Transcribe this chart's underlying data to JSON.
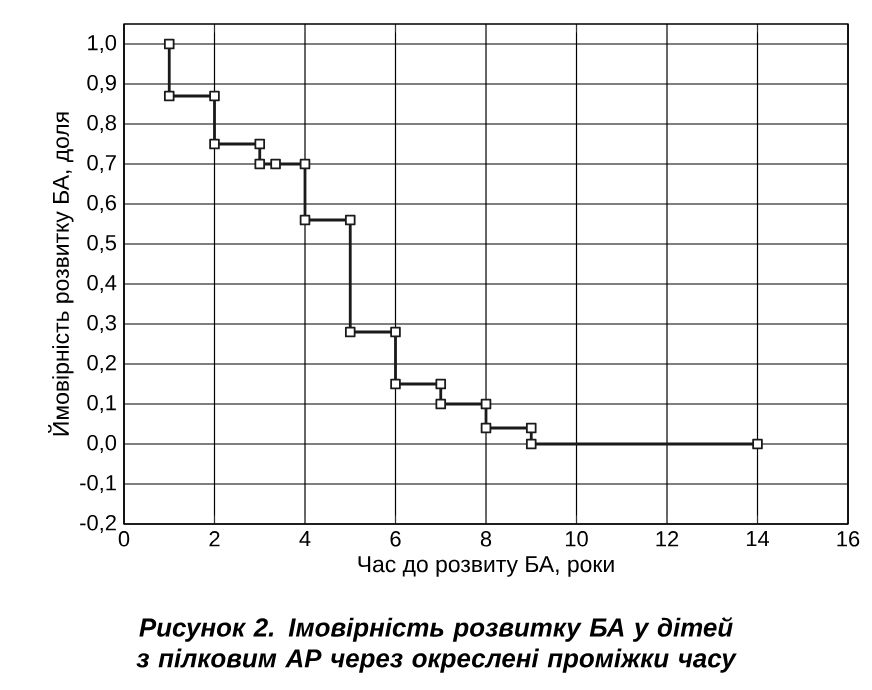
{
  "chart_data": {
    "type": "line",
    "xlabel": "Час до розвиту БА, роки",
    "ylabel": "Ймовірність розвитку БА, доля",
    "annotations": [
      "Рисунок 2. Імовірність розвитку БА у дітей з пілковим АР через окреслені проміжки часу"
    ],
    "series": [
      {
        "color": "#1a1a1a",
        "x": [
          1,
          1,
          2,
          2,
          3,
          3,
          3.35,
          4,
          4,
          5,
          5,
          6,
          6,
          7,
          7,
          8,
          8,
          9,
          9,
          14
        ],
        "values": [
          1.0,
          0.87,
          0.87,
          0.75,
          0.75,
          0.7,
          0.7,
          0.7,
          0.56,
          0.56,
          0.28,
          0.28,
          0.15,
          0.15,
          0.1,
          0.1,
          0.04,
          0.04,
          0.0,
          0.0
        ]
      }
    ],
    "xlim": [
      0,
      16
    ],
    "xticks": [
      0,
      2,
      4,
      6,
      8,
      10,
      12,
      14,
      16
    ],
    "ylim": [
      -0.2,
      1.05
    ],
    "yticks": [
      {
        "value": -0.2,
        "label": "-0,2"
      },
      {
        "value": -0.1,
        "label": "-0,1"
      },
      {
        "value": 0.0,
        "label": "0,0"
      },
      {
        "value": 0.1,
        "label": "0,1"
      },
      {
        "value": 0.2,
        "label": "0,2"
      },
      {
        "value": 0.3,
        "label": "0,3"
      },
      {
        "value": 0.4,
        "label": "0,4"
      },
      {
        "value": 0.5,
        "label": "0,5"
      },
      {
        "value": 0.6,
        "label": "0,6"
      },
      {
        "value": 0.7,
        "label": "0,7"
      },
      {
        "value": 0.8,
        "label": "0,8"
      },
      {
        "value": 0.9,
        "label": "0,9"
      },
      {
        "value": 1.0,
        "label": "1,0"
      }
    ],
    "grid": true,
    "marker": "square",
    "line_style": "solid"
  }
}
